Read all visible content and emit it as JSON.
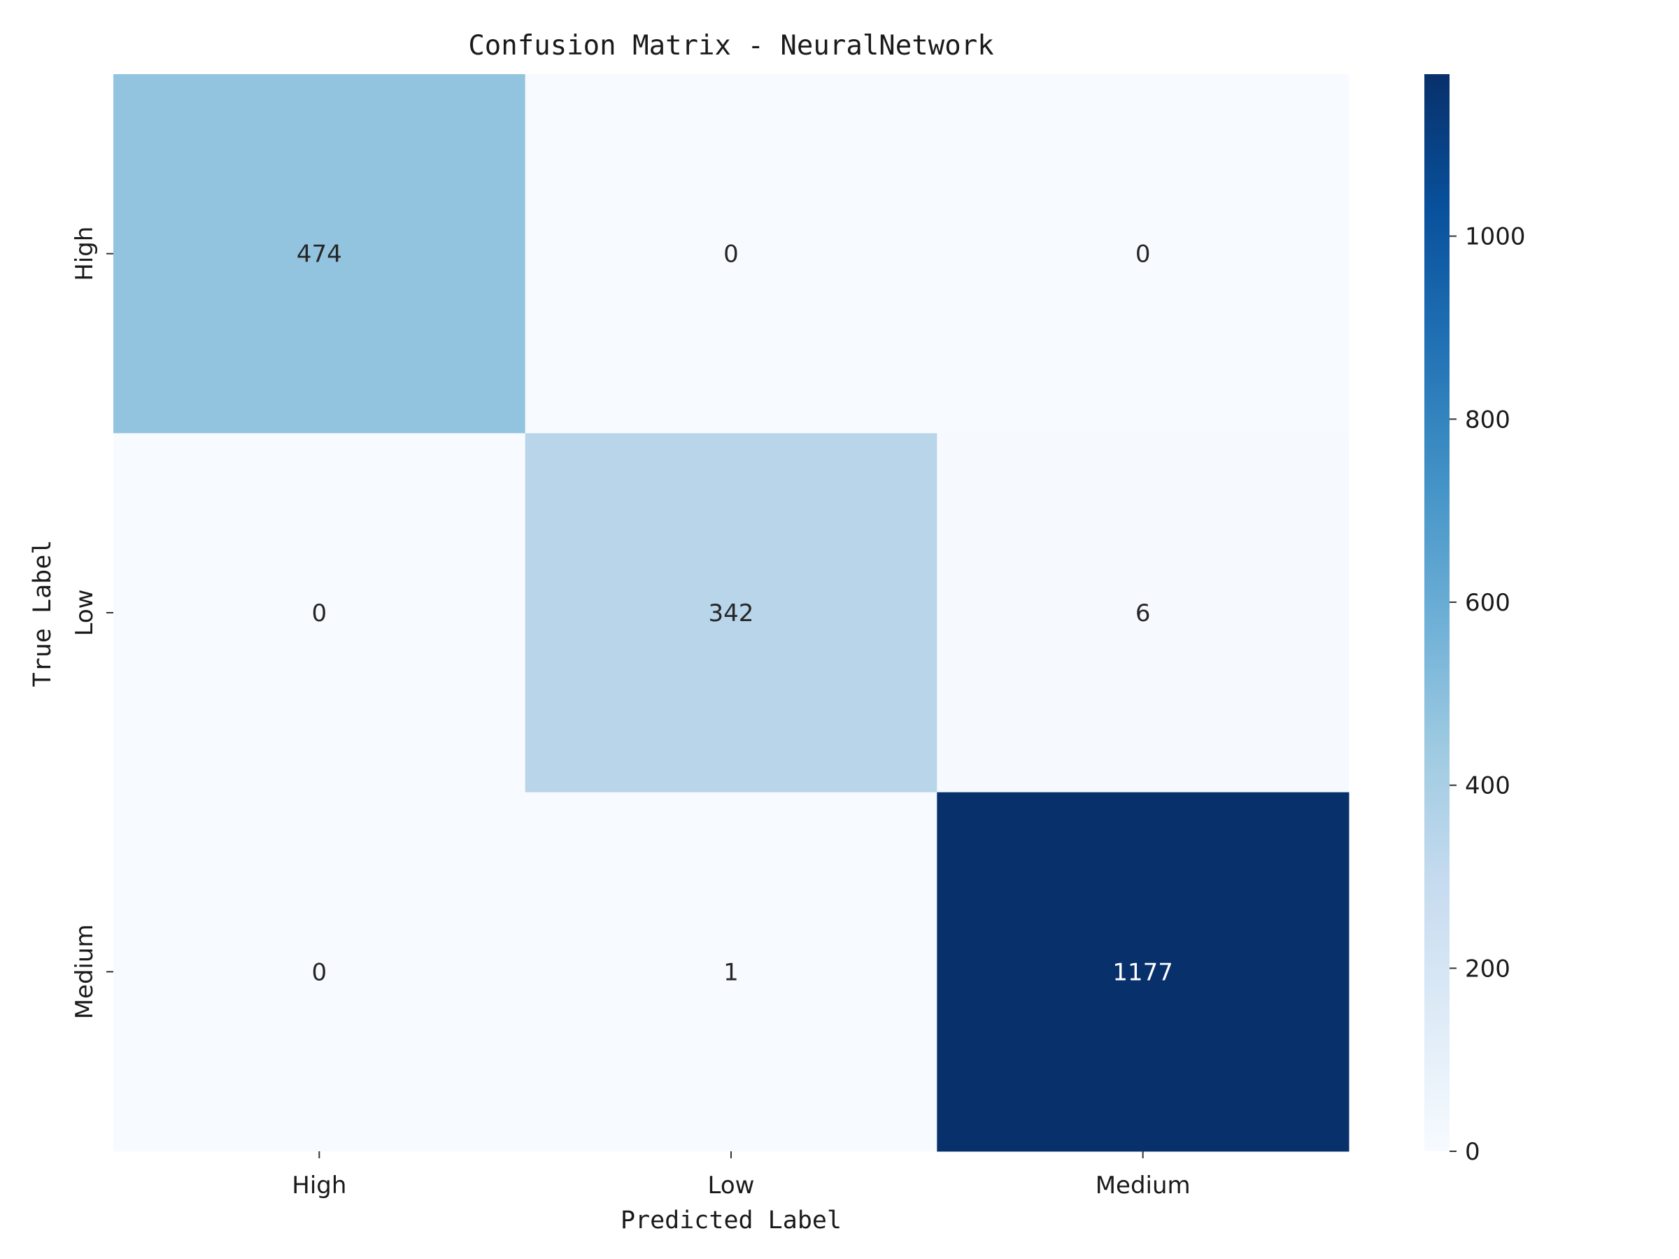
{
  "chart_data": {
    "type": "heatmap",
    "title": "Confusion Matrix - NeuralNetwork",
    "xlabel": "Predicted Label",
    "ylabel": "True Label",
    "x_categories": [
      "High",
      "Low",
      "Medium"
    ],
    "y_categories": [
      "High",
      "Low",
      "Medium"
    ],
    "values": [
      [
        474,
        0,
        0
      ],
      [
        0,
        342,
        6
      ],
      [
        0,
        1,
        1177
      ]
    ],
    "colorscale": "Blues",
    "colorbar": {
      "range": [
        0,
        1177
      ],
      "ticks": [
        0,
        200,
        400,
        600,
        800,
        1000
      ]
    }
  }
}
